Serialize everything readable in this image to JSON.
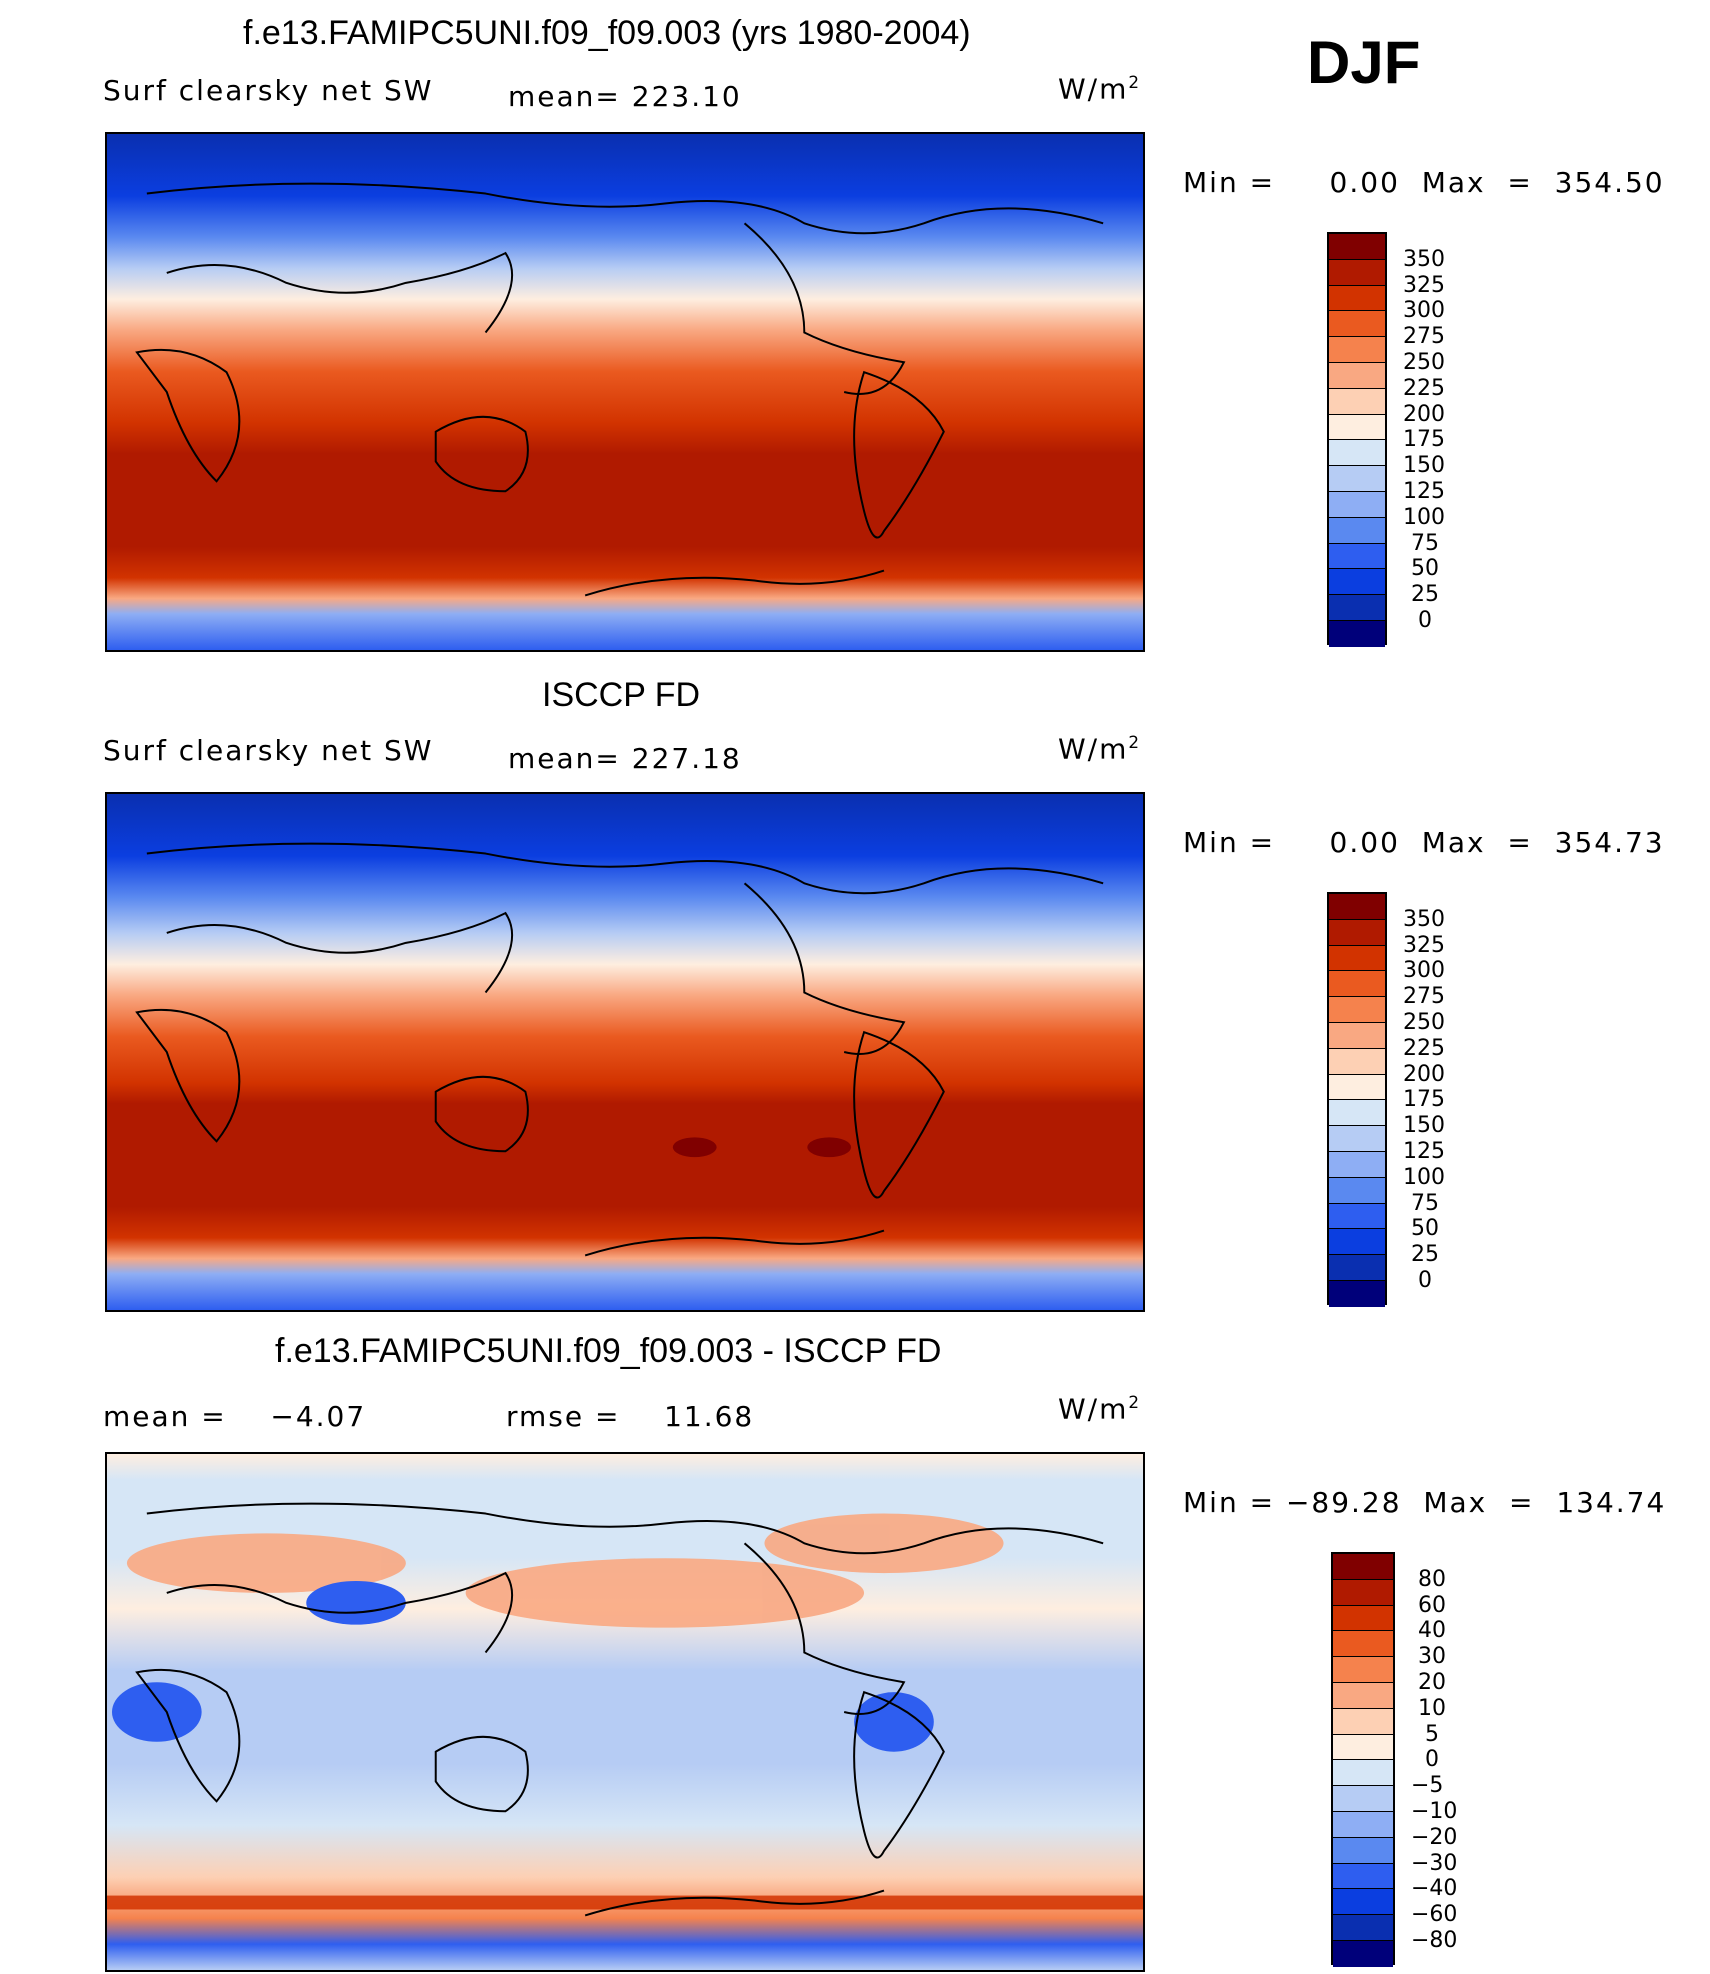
{
  "season": "DJF",
  "panels": [
    {
      "title": "f.e13.FAMIPC5UNI.f09_f09.003 (yrs 1980-2004)",
      "variable": "Surf clearsky net SW",
      "stat1": "mean= 223.10",
      "stat2": "",
      "units": "W/m",
      "units_sup": "2",
      "range_text": "Min =     0.00  Max  =  354.50",
      "colorbar_labels": [
        "350",
        "325",
        "300",
        "275",
        "250",
        "225",
        "200",
        "175",
        "150",
        "125",
        "100",
        "75",
        "50",
        "25",
        "0"
      ],
      "colors": [
        "#800000",
        "#b01a00",
        "#d23300",
        "#ea5a20",
        "#f5824d",
        "#f9a882",
        "#fdd0b4",
        "#feeee0",
        "#d6e6f6",
        "#b6ccf4",
        "#8eaef4",
        "#5a89f0",
        "#2e5ef0",
        "#0b3ee0",
        "#0a2fb0",
        "#00007a"
      ]
    },
    {
      "title": "ISCCP FD",
      "variable": "Surf clearsky net SW",
      "stat1": "mean= 227.18",
      "stat2": "",
      "units": "W/m",
      "units_sup": "2",
      "range_text": "Min =     0.00  Max  =  354.73",
      "colorbar_labels": [
        "350",
        "325",
        "300",
        "275",
        "250",
        "225",
        "200",
        "175",
        "150",
        "125",
        "100",
        "75",
        "50",
        "25",
        "0"
      ],
      "colors": [
        "#800000",
        "#b01a00",
        "#d23300",
        "#ea5a20",
        "#f5824d",
        "#f9a882",
        "#fdd0b4",
        "#feeee0",
        "#d6e6f6",
        "#b6ccf4",
        "#8eaef4",
        "#5a89f0",
        "#2e5ef0",
        "#0b3ee0",
        "#0a2fb0",
        "#00007a"
      ]
    },
    {
      "title": "f.e13.FAMIPC5UNI.f09_f09.003 - ISCCP FD",
      "variable": "",
      "stat1": "mean =    −4.07",
      "stat2": "rmse =    11.68",
      "units": "W/m",
      "units_sup": "2",
      "range_text": "Min = −89.28  Max  =  134.74",
      "colorbar_labels": [
        "80",
        "60",
        "40",
        "30",
        "20",
        "10",
        "5",
        "0",
        "−5",
        "−10",
        "−20",
        "−30",
        "−40",
        "−60",
        "−80"
      ],
      "colors": [
        "#800000",
        "#b01a00",
        "#d23300",
        "#ea5a20",
        "#f5824d",
        "#f9a882",
        "#fdd0b4",
        "#feeee0",
        "#d6e6f6",
        "#b6ccf4",
        "#8eaef4",
        "#5a89f0",
        "#2e5ef0",
        "#0b3ee0",
        "#0a2fb0",
        "#00007a"
      ]
    }
  ]
}
